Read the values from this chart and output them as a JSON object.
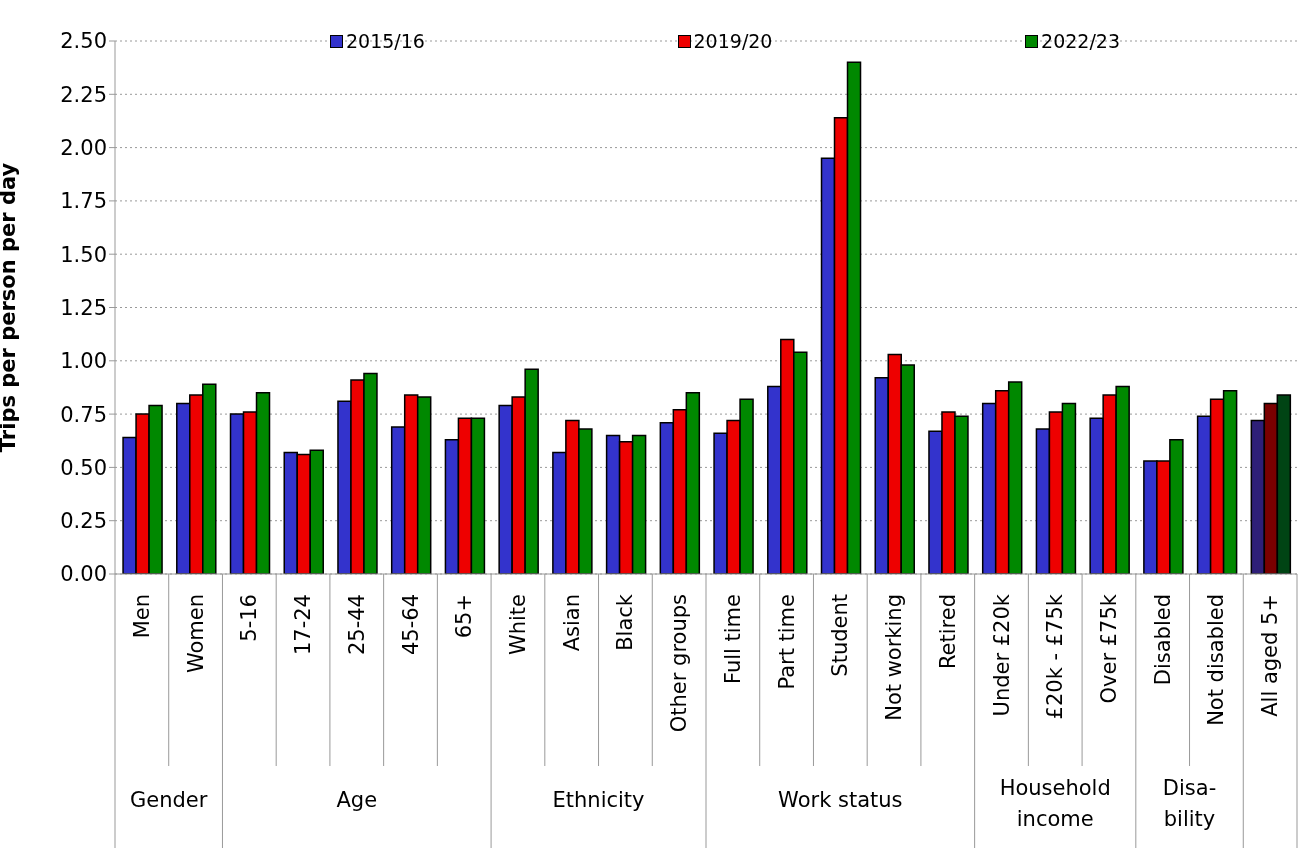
{
  "chart_data": {
    "type": "bar",
    "ylabel": "Trips per person per day",
    "categories": [
      "Men",
      "Women",
      "5-16",
      "17-24",
      "25-44",
      "45-64",
      "65+",
      "White",
      "Asian",
      "Black",
      "Other groups",
      "Full time",
      "Part time",
      "Student",
      "Not working",
      "Retired",
      "Under £20k",
      "£20k - £75k",
      "Over £75k",
      "Disabled",
      "Not disabled",
      "All aged 5+"
    ],
    "series": [
      {
        "name": "2015/16",
        "color": "#3333cc",
        "colors": [
          "#3333cc",
          "#3333cc",
          "#3333cc",
          "#3333cc",
          "#3333cc",
          "#3333cc",
          "#3333cc",
          "#3333cc",
          "#3333cc",
          "#3333cc",
          "#3333cc",
          "#3333cc",
          "#3333cc",
          "#3333cc",
          "#3333cc",
          "#3333cc",
          "#3333cc",
          "#3333cc",
          "#3333cc",
          "#3333cc",
          "#3333cc",
          "#2e1f78"
        ],
        "values": [
          0.64,
          0.8,
          0.75,
          0.57,
          0.81,
          0.69,
          0.63,
          0.79,
          0.57,
          0.65,
          0.71,
          0.66,
          0.88,
          1.95,
          0.92,
          0.67,
          0.8,
          0.68,
          0.73,
          0.53,
          0.74,
          0.72
        ]
      },
      {
        "name": "2019/20",
        "color": "#ee0000",
        "colors": [
          "#ee0000",
          "#ee0000",
          "#ee0000",
          "#ee0000",
          "#ee0000",
          "#ee0000",
          "#ee0000",
          "#ee0000",
          "#ee0000",
          "#ee0000",
          "#ee0000",
          "#ee0000",
          "#ee0000",
          "#ee0000",
          "#ee0000",
          "#ee0000",
          "#ee0000",
          "#ee0000",
          "#ee0000",
          "#ee0000",
          "#ee0000",
          "#7a0000"
        ],
        "values": [
          0.75,
          0.84,
          0.76,
          0.56,
          0.91,
          0.84,
          0.73,
          0.83,
          0.72,
          0.62,
          0.77,
          0.72,
          1.1,
          2.14,
          1.03,
          0.76,
          0.86,
          0.76,
          0.84,
          0.53,
          0.82,
          0.8
        ]
      },
      {
        "name": "2022/23",
        "color": "#008800",
        "colors": [
          "#008800",
          "#008800",
          "#008800",
          "#008800",
          "#008800",
          "#008800",
          "#008800",
          "#008800",
          "#008800",
          "#008800",
          "#008800",
          "#008800",
          "#008800",
          "#008800",
          "#008800",
          "#008800",
          "#008800",
          "#008800",
          "#008800",
          "#008800",
          "#008800",
          "#004414"
        ],
        "values": [
          0.79,
          0.89,
          0.85,
          0.58,
          0.94,
          0.83,
          0.73,
          0.96,
          0.68,
          0.65,
          0.85,
          0.82,
          1.04,
          2.4,
          0.98,
          0.74,
          0.9,
          0.8,
          0.88,
          0.63,
          0.86,
          0.84
        ]
      }
    ],
    "ylim": [
      0,
      2.5
    ],
    "yticks": [
      {
        "value": 0,
        "label": "0.00"
      },
      {
        "value": 0.25,
        "label": "0.25"
      },
      {
        "value": 0.5,
        "label": "0.50"
      },
      {
        "value": 0.75,
        "label": "0.75"
      },
      {
        "value": 1,
        "label": "1.00"
      },
      {
        "value": 1.25,
        "label": "1.25"
      },
      {
        "value": 1.5,
        "label": "1.50"
      },
      {
        "value": 1.75,
        "label": "1.75"
      },
      {
        "value": 2,
        "label": "2.00"
      },
      {
        "value": 2.25,
        "label": "2.25"
      },
      {
        "value": 2.5,
        "label": "2.50"
      }
    ],
    "grid": "y",
    "legend": "top",
    "annotations": [
      "Gender",
      "Age",
      "Ethnicity",
      "Work status",
      "Household income",
      "Disa-bility"
    ]
  }
}
